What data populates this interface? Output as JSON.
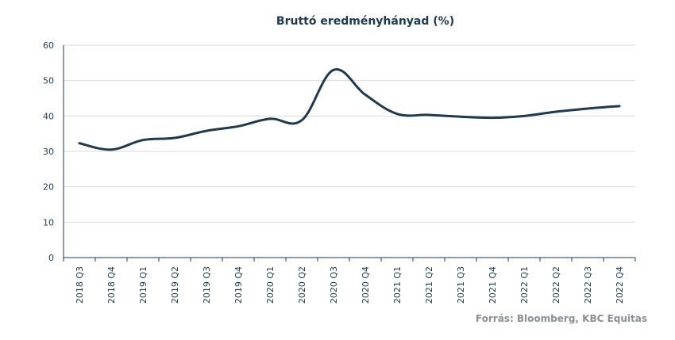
{
  "chart_data": {
    "type": "line",
    "title": "Bruttó eredményhányad  (%)",
    "xlabel": "",
    "ylabel": "",
    "ylim": [
      0,
      60
    ],
    "yticks": [
      0,
      10,
      20,
      30,
      40,
      50,
      60
    ],
    "grid": true,
    "categories": [
      "2018 Q3",
      "2018 Q4",
      "2019 Q1",
      "2019 Q2",
      "2019 Q3",
      "2019 Q4",
      "2020 Q1",
      "2020 Q2",
      "2020 Q3",
      "2020 Q4",
      "2021 Q1",
      "2021 Q2",
      "2021 Q3",
      "2021 Q4",
      "2022 Q1",
      "2022 Q2",
      "2022 Q3",
      "2022 Q4"
    ],
    "series": [
      {
        "name": "",
        "color": "#1c3a52",
        "values": [
          32.3,
          30.5,
          33.2,
          33.8,
          35.8,
          37.1,
          39.2,
          38.8,
          53.0,
          46.0,
          40.6,
          40.3,
          39.8,
          39.5,
          40.0,
          41.2,
          42.1,
          42.8
        ]
      }
    ],
    "source": "Forrás: Bloomberg,  KBC Equitas"
  }
}
